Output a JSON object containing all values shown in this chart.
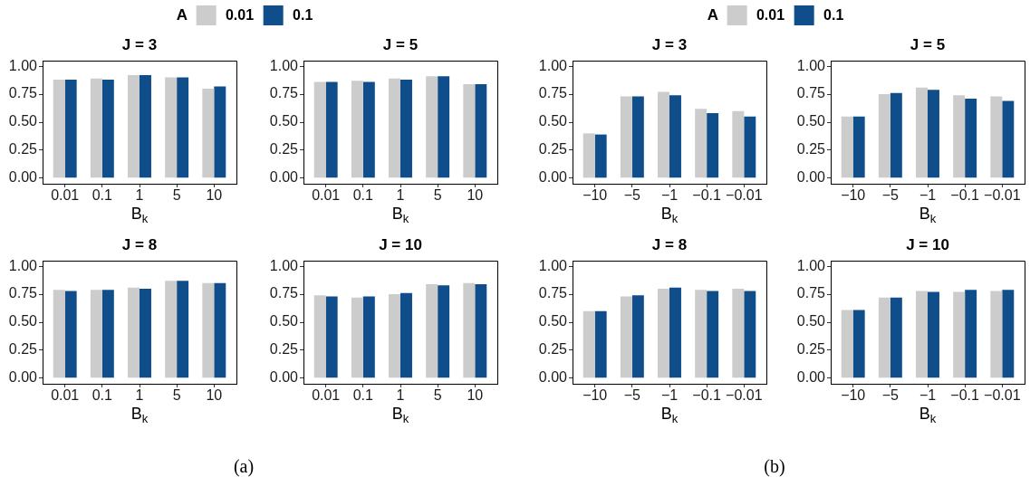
{
  "chart_data": [
    {
      "type": "bar",
      "title": "J = 3",
      "xlabel": "B$_{k}$",
      "legend_title": "A",
      "legend": "top",
      "annotations": [
        "(a)"
      ],
      "categories": [
        "0.01",
        "0.1",
        "1",
        "5",
        "10"
      ],
      "series": [
        {
          "name": "0.01",
          "color": "#cccccc",
          "values": [
            0.88,
            0.89,
            0.92,
            0.9,
            0.8
          ]
        },
        {
          "name": "0.1",
          "color": "#104e8b",
          "values": [
            0.88,
            0.88,
            0.92,
            0.9,
            0.82
          ]
        }
      ],
      "ylim": [
        -0.05,
        1.05
      ],
      "yticks": [
        {
          "value": 0,
          "label": "0.00"
        },
        {
          "value": 0.25,
          "label": "0.25"
        },
        {
          "value": 0.5,
          "label": "0.50"
        },
        {
          "value": 0.75,
          "label": "0.75"
        },
        {
          "value": 1,
          "label": "1.00"
        }
      ],
      "grid": false
    },
    {
      "type": "bar",
      "title": "J = 5",
      "xlabel": "B$_{k}$",
      "categories": [
        "0.01",
        "0.1",
        "1",
        "5",
        "10"
      ],
      "series": [
        {
          "color": "#cccccc",
          "values": [
            0.86,
            0.87,
            0.89,
            0.91,
            0.84
          ]
        },
        {
          "color": "#104e8b",
          "values": [
            0.86,
            0.86,
            0.88,
            0.91,
            0.84
          ]
        }
      ],
      "ylim": [
        -0.05,
        1.05
      ],
      "yticks": [
        {
          "value": 0,
          "label": "0.00"
        },
        {
          "value": 0.25,
          "label": "0.25"
        },
        {
          "value": 0.5,
          "label": "0.50"
        },
        {
          "value": 0.75,
          "label": "0.75"
        },
        {
          "value": 1,
          "label": "1.00"
        }
      ],
      "grid": false
    },
    {
      "type": "bar",
      "title": "J = 8",
      "xlabel": "B$_{k}$",
      "categories": [
        "0.01",
        "0.1",
        "1",
        "5",
        "10"
      ],
      "series": [
        {
          "color": "#cccccc",
          "values": [
            0.79,
            0.79,
            0.81,
            0.87,
            0.85
          ]
        },
        {
          "color": "#104e8b",
          "values": [
            0.78,
            0.79,
            0.8,
            0.87,
            0.85
          ]
        }
      ],
      "ylim": [
        -0.05,
        1.05
      ],
      "yticks": [
        {
          "value": 0,
          "label": "0.00"
        },
        {
          "value": 0.25,
          "label": "0.25"
        },
        {
          "value": 0.5,
          "label": "0.50"
        },
        {
          "value": 0.75,
          "label": "0.75"
        },
        {
          "value": 1,
          "label": "1.00"
        }
      ],
      "grid": false
    },
    {
      "type": "bar",
      "title": "J = 10",
      "xlabel": "B$_{k}$",
      "categories": [
        "0.01",
        "0.1",
        "1",
        "5",
        "10"
      ],
      "series": [
        {
          "color": "#cccccc",
          "values": [
            0.74,
            0.72,
            0.75,
            0.84,
            0.85
          ]
        },
        {
          "color": "#104e8b",
          "values": [
            0.73,
            0.73,
            0.76,
            0.83,
            0.84
          ]
        }
      ],
      "ylim": [
        -0.05,
        1.05
      ],
      "yticks": [
        {
          "value": 0,
          "label": "0.00"
        },
        {
          "value": 0.25,
          "label": "0.25"
        },
        {
          "value": 0.5,
          "label": "0.50"
        },
        {
          "value": 0.75,
          "label": "0.75"
        },
        {
          "value": 1,
          "label": "1.00"
        }
      ],
      "grid": false
    },
    {
      "type": "bar",
      "title": "J = 3",
      "xlabel": "B$_{k}$",
      "legend_title": "A",
      "legend": "top",
      "annotations": [
        "(b)"
      ],
      "categories": [
        "−10",
        "−5",
        "−1",
        "−0.1",
        "−0.01"
      ],
      "series": [
        {
          "name": "0.01",
          "color": "#cccccc",
          "values": [
            0.4,
            0.73,
            0.77,
            0.62,
            0.6
          ]
        },
        {
          "name": "0.1",
          "color": "#104e8b",
          "values": [
            0.39,
            0.73,
            0.74,
            0.58,
            0.55
          ]
        }
      ],
      "ylim": [
        -0.05,
        1.05
      ],
      "yticks": [
        {
          "value": 0,
          "label": "0.00"
        },
        {
          "value": 0.25,
          "label": "0.25"
        },
        {
          "value": 0.5,
          "label": "0.50"
        },
        {
          "value": 0.75,
          "label": "0.75"
        },
        {
          "value": 1,
          "label": "1.00"
        }
      ],
      "grid": false
    },
    {
      "type": "bar",
      "title": "J = 5",
      "xlabel": "B$_{k}$",
      "categories": [
        "−10",
        "−5",
        "−1",
        "−0.1",
        "−0.01"
      ],
      "series": [
        {
          "color": "#cccccc",
          "values": [
            0.55,
            0.75,
            0.81,
            0.74,
            0.73
          ]
        },
        {
          "color": "#104e8b",
          "values": [
            0.55,
            0.76,
            0.79,
            0.71,
            0.69
          ]
        }
      ],
      "ylim": [
        -0.05,
        1.05
      ],
      "yticks": [
        {
          "value": 0,
          "label": "0.00"
        },
        {
          "value": 0.25,
          "label": "0.25"
        },
        {
          "value": 0.5,
          "label": "0.50"
        },
        {
          "value": 0.75,
          "label": "0.75"
        },
        {
          "value": 1,
          "label": "1.00"
        }
      ],
      "grid": false
    },
    {
      "type": "bar",
      "title": "J = 8",
      "xlabel": "B$_{k}$",
      "categories": [
        "−10",
        "−5",
        "−1",
        "−0.1",
        "−0.01"
      ],
      "series": [
        {
          "color": "#cccccc",
          "values": [
            0.6,
            0.73,
            0.8,
            0.79,
            0.8
          ]
        },
        {
          "color": "#104e8b",
          "values": [
            0.6,
            0.74,
            0.81,
            0.78,
            0.78
          ]
        }
      ],
      "ylim": [
        -0.05,
        1.05
      ],
      "yticks": [
        {
          "value": 0,
          "label": "0.00"
        },
        {
          "value": 0.25,
          "label": "0.25"
        },
        {
          "value": 0.5,
          "label": "0.50"
        },
        {
          "value": 0.75,
          "label": "0.75"
        },
        {
          "value": 1,
          "label": "1.00"
        }
      ],
      "grid": false
    },
    {
      "type": "bar",
      "title": "J = 10",
      "xlabel": "B$_{k}$",
      "categories": [
        "−10",
        "−5",
        "−1",
        "−0.1",
        "−0.01"
      ],
      "series": [
        {
          "color": "#cccccc",
          "values": [
            0.61,
            0.72,
            0.78,
            0.77,
            0.78
          ]
        },
        {
          "color": "#104e8b",
          "values": [
            0.61,
            0.72,
            0.77,
            0.79,
            0.79
          ]
        }
      ],
      "ylim": [
        -0.05,
        1.05
      ],
      "yticks": [
        {
          "value": 0,
          "label": "0.00"
        },
        {
          "value": 0.25,
          "label": "0.25"
        },
        {
          "value": 0.5,
          "label": "0.50"
        },
        {
          "value": 0.75,
          "label": "0.75"
        },
        {
          "value": 1,
          "label": "1.00"
        }
      ],
      "grid": false
    }
  ]
}
